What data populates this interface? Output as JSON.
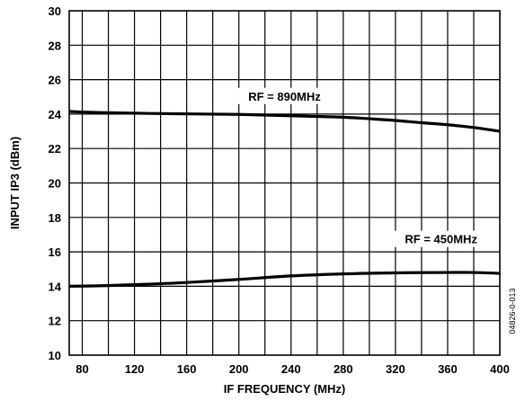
{
  "chart_data": {
    "type": "line",
    "xlabel": "IF FREQUENCY (MHz)",
    "ylabel": "INPUT IP3 (dBm)",
    "xlim": [
      70,
      400
    ],
    "ylim": [
      10,
      30
    ],
    "x_ticks": [
      80,
      120,
      160,
      200,
      240,
      280,
      320,
      360,
      400
    ],
    "y_ticks": [
      10,
      12,
      14,
      16,
      18,
      20,
      22,
      24,
      26,
      28,
      30
    ],
    "grid": true,
    "series": [
      {
        "name": "RF = 890MHz",
        "x": [
          70,
          100,
          150,
          200,
          250,
          280,
          300,
          320,
          340,
          360,
          380,
          400
        ],
        "y": [
          24.15,
          24.08,
          24.02,
          23.98,
          23.88,
          23.82,
          23.73,
          23.63,
          23.5,
          23.38,
          23.22,
          23.0
        ]
      },
      {
        "name": "RF = 450MHz",
        "x": [
          70,
          100,
          130,
          160,
          200,
          240,
          280,
          320,
          360,
          380,
          400
        ],
        "y": [
          14.0,
          14.04,
          14.12,
          14.22,
          14.4,
          14.6,
          14.72,
          14.78,
          14.8,
          14.8,
          14.75
        ]
      }
    ],
    "annotations": [
      "RF = 890MHz",
      "RF = 450MHz"
    ],
    "figure_id": "04826-0-013"
  }
}
